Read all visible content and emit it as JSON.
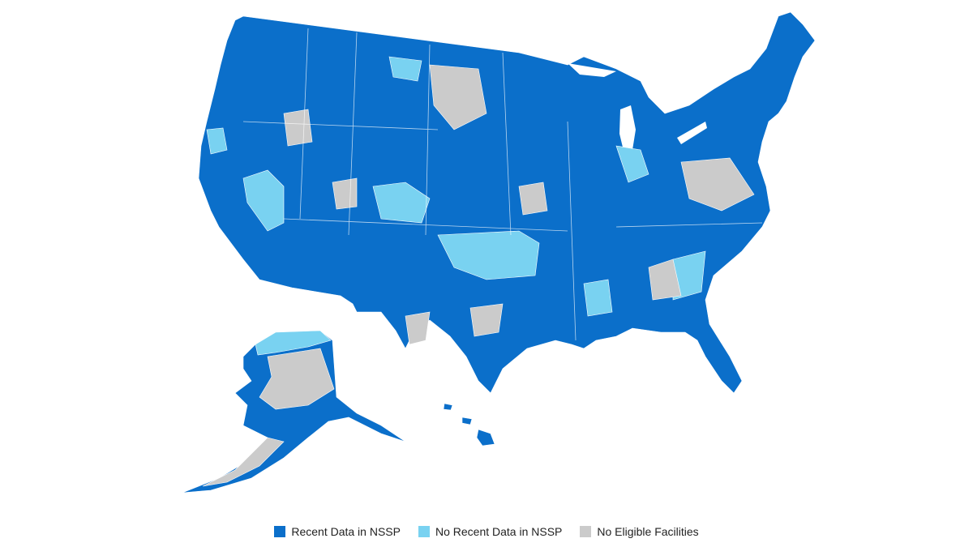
{
  "legend": {
    "items": [
      {
        "label": "Recent Data in NSSP",
        "color": "#0b6fca"
      },
      {
        "label": "No Recent Data in NSSP",
        "color": "#79d2f1"
      },
      {
        "label": "No Eligible Facilities",
        "color": "#cbcbcb"
      }
    ]
  }
}
